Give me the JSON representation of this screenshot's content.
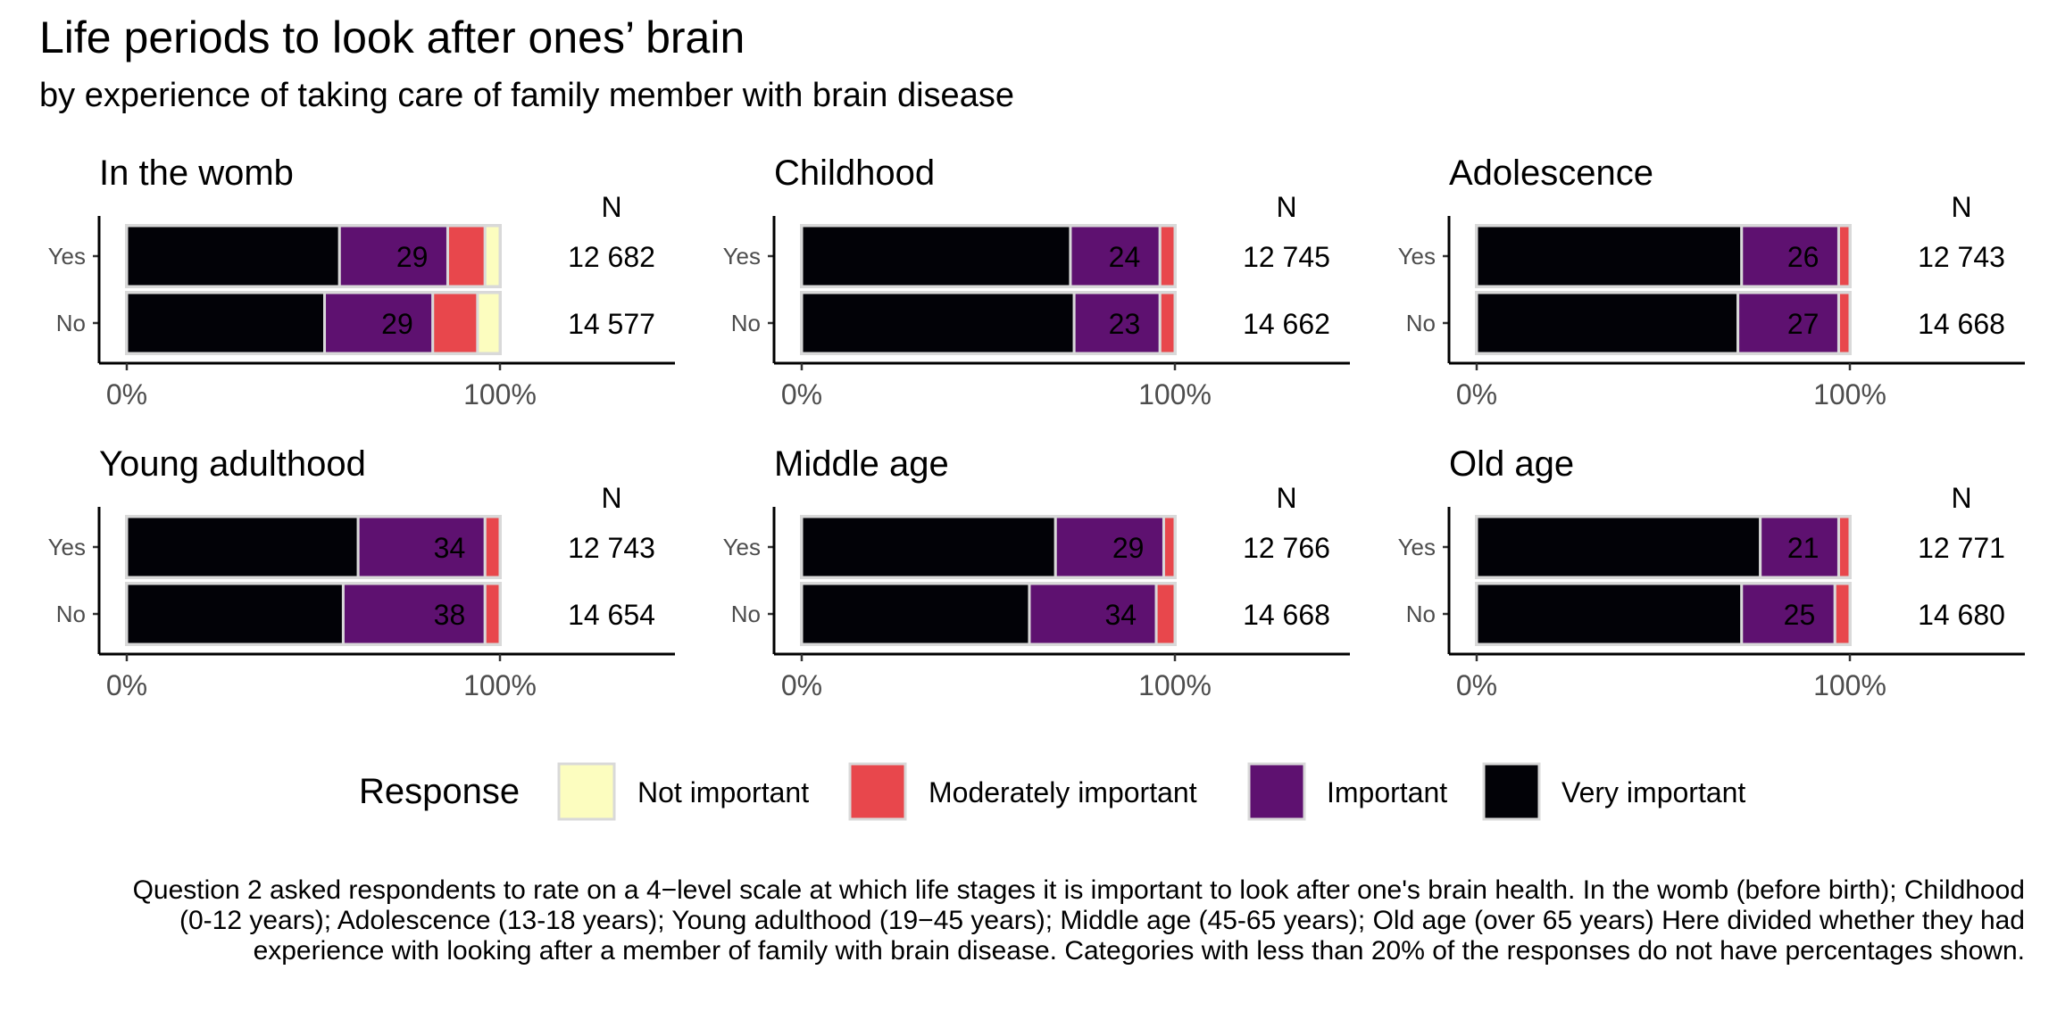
{
  "title": "Life periods to look after ones’ brain",
  "subtitle": "by experience of taking care of family member with brain disease",
  "caption": "Question 2 asked respondents to rate on a 4−level scale at which life stages it is important to look after one's brain health. In the womb (before birth); Childhood (0-12 years); Adolescence (13-18 years); Young adulthood (19−45 years); Middle age (45-65 years); Old age (over 65 years) Here divided whether they had experience with looking after a member of family with brain disease. Categories with less than 20% of the responses do not have percentages shown.",
  "chart_data": {
    "type": "bar",
    "orientation": "horizontal",
    "stacked": true,
    "normalized": true,
    "n_header": "N",
    "xlim": [
      0,
      100
    ],
    "x_ticks": [
      "0%",
      "100%"
    ],
    "y_categories": [
      "Yes",
      "No"
    ],
    "label_threshold": 20,
    "legend": {
      "title": "Response",
      "position": "bottom",
      "entries": [
        {
          "name": "Not important",
          "color": "#FCFDBF"
        },
        {
          "name": "Moderately important",
          "color": "#E8474C"
        },
        {
          "name": "Important",
          "color": "#5E1170"
        },
        {
          "name": "Very important",
          "color": "#020207"
        }
      ]
    },
    "stack_order": [
      "Very important",
      "Important",
      "Moderately important",
      "Not important"
    ],
    "panels": [
      {
        "title": "In the womb",
        "rows": [
          {
            "group": "Yes",
            "n": "12 682",
            "very_important": 57,
            "important": 29,
            "moderately_important": 10,
            "not_important": 4
          },
          {
            "group": "No",
            "n": "14 577",
            "very_important": 53,
            "important": 29,
            "moderately_important": 12,
            "not_important": 6
          }
        ]
      },
      {
        "title": "Childhood",
        "rows": [
          {
            "group": "Yes",
            "n": "12 745",
            "very_important": 72,
            "important": 24,
            "moderately_important": 4,
            "not_important": 0
          },
          {
            "group": "No",
            "n": "14 662",
            "very_important": 73,
            "important": 23,
            "moderately_important": 4,
            "not_important": 0
          }
        ]
      },
      {
        "title": "Adolescence",
        "rows": [
          {
            "group": "Yes",
            "n": "12 743",
            "very_important": 71,
            "important": 26,
            "moderately_important": 3,
            "not_important": 0
          },
          {
            "group": "No",
            "n": "14 668",
            "very_important": 70,
            "important": 27,
            "moderately_important": 3,
            "not_important": 0
          }
        ]
      },
      {
        "title": "Young adulthood",
        "rows": [
          {
            "group": "Yes",
            "n": "12 743",
            "very_important": 62,
            "important": 34,
            "moderately_important": 4,
            "not_important": 0
          },
          {
            "group": "No",
            "n": "14 654",
            "very_important": 58,
            "important": 38,
            "moderately_important": 4,
            "not_important": 0
          }
        ]
      },
      {
        "title": "Middle age",
        "rows": [
          {
            "group": "Yes",
            "n": "12 766",
            "very_important": 68,
            "important": 29,
            "moderately_important": 3,
            "not_important": 0
          },
          {
            "group": "No",
            "n": "14 668",
            "very_important": 61,
            "important": 34,
            "moderately_important": 5,
            "not_important": 0
          }
        ]
      },
      {
        "title": "Old age",
        "rows": [
          {
            "group": "Yes",
            "n": "12 771",
            "very_important": 76,
            "important": 21,
            "moderately_important": 3,
            "not_important": 0
          },
          {
            "group": "No",
            "n": "14 680",
            "very_important": 71,
            "important": 25,
            "moderately_important": 4,
            "not_important": 0
          }
        ]
      }
    ]
  }
}
